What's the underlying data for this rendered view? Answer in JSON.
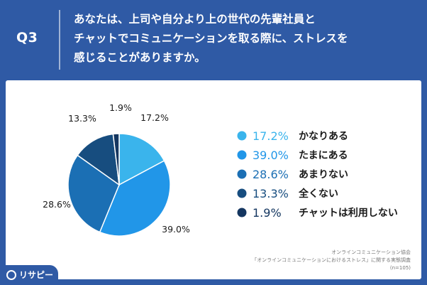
{
  "header": {
    "question_number": "Q3",
    "question_lines": [
      "あなたは、上司や自分より上の世代の先輩社員と",
      "チャットでコミュニケーションを取る際に、ストレスを",
      "感じることがありますか。"
    ]
  },
  "chart_data": {
    "type": "pie",
    "title": "",
    "categories": [
      "かなりある",
      "たまにある",
      "あまりない",
      "全くない",
      "チャットは利用しない"
    ],
    "values": [
      17.2,
      39.0,
      28.6,
      13.3,
      1.9
    ],
    "value_labels": [
      "17.2%",
      "39.0%",
      "28.6%",
      "13.3%",
      "1.9%"
    ],
    "colors": [
      "#3ab4ec",
      "#2196e8",
      "#1b6fb4",
      "#174d7f",
      "#143660"
    ],
    "legend_position": "right"
  },
  "source": {
    "org": "オンラインコミュニケーション協会",
    "survey": "「オンラインコミュニケーションにおけるストレス」に関する実態調査",
    "sample": "(n=105)"
  },
  "logo": {
    "text": "リサピー"
  }
}
